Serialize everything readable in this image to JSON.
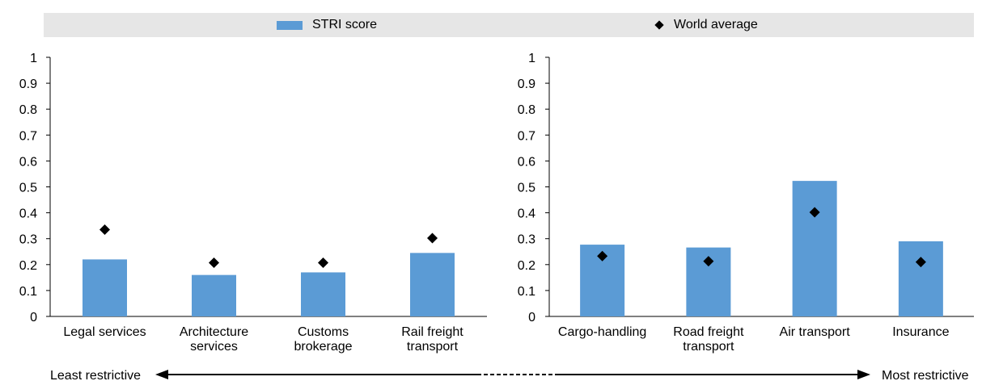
{
  "legend": {
    "bar_label": "STRI score",
    "marker_label": "World average"
  },
  "colors": {
    "bar": "#5b9bd5",
    "marker": "#000000",
    "legend_background": "#e6e6e6"
  },
  "chart_data": [
    {
      "type": "bar",
      "categories": [
        "Legal services",
        "Architecture services",
        "Customs brokerage",
        "Rail freight transport"
      ],
      "category_lines": [
        [
          "Legal services"
        ],
        [
          "Architecture",
          "services"
        ],
        [
          "Customs",
          "brokerage"
        ],
        [
          "Rail freight",
          "transport"
        ]
      ],
      "series": [
        {
          "name": "STRI score",
          "type": "bar",
          "values": [
            0.22,
            0.16,
            0.17,
            0.245
          ]
        },
        {
          "name": "World average",
          "type": "marker",
          "values": [
            0.335,
            0.207,
            0.207,
            0.302
          ]
        }
      ],
      "ylim": [
        0,
        1
      ],
      "yticks": [
        "0",
        "0.1",
        "0.2",
        "0.3",
        "0.4",
        "0.5",
        "0.6",
        "0.7",
        "0.8",
        "0.9",
        "1"
      ]
    },
    {
      "type": "bar",
      "categories": [
        "Cargo-handling",
        "Road freight transport",
        "Air transport",
        "Insurance"
      ],
      "category_lines": [
        [
          "Cargo-handling"
        ],
        [
          "Road freight",
          "transport"
        ],
        [
          "Air transport"
        ],
        [
          "Insurance"
        ]
      ],
      "series": [
        {
          "name": "STRI score",
          "type": "bar",
          "values": [
            0.277,
            0.266,
            0.523,
            0.29
          ]
        },
        {
          "name": "World average",
          "type": "marker",
          "values": [
            0.233,
            0.213,
            0.402,
            0.21
          ]
        }
      ],
      "ylim": [
        0,
        1
      ],
      "yticks": [
        "0",
        "0.1",
        "0.2",
        "0.3",
        "0.4",
        "0.5",
        "0.6",
        "0.7",
        "0.8",
        "0.9",
        "1"
      ]
    }
  ],
  "scale": {
    "least": "Least restrictive",
    "most": "Most restrictive"
  }
}
